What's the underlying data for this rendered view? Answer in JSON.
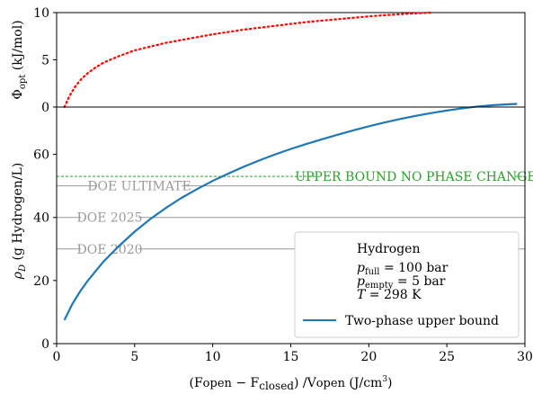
{
  "chart_data": [
    {
      "type": "line",
      "ylabel_main": "Φ",
      "ylabel_sub": "opt",
      "ylabel_unit": " (kJ/mol)",
      "xlim": [
        0,
        30
      ],
      "ylim": [
        0,
        10
      ],
      "yticks": [
        0,
        5,
        10
      ],
      "grid": false,
      "series": [
        {
          "color": "#ff0000",
          "style": "dotted",
          "x": [
            0.5,
            0.8,
            1.2,
            1.6,
            2.0,
            2.5,
            3.0,
            4.0,
            5.0,
            6.0,
            7.0,
            8.0,
            9.0,
            10.0,
            11.0,
            12.0,
            13.0,
            14.0,
            15.0,
            16.0,
            17.0,
            18.0,
            19.0,
            20.0,
            21.0,
            22.0,
            23.0,
            24.0
          ],
          "y": [
            0.0,
            1.1,
            2.2,
            3.0,
            3.6,
            4.2,
            4.7,
            5.4,
            6.0,
            6.4,
            6.8,
            7.1,
            7.4,
            7.7,
            7.95,
            8.2,
            8.4,
            8.6,
            8.8,
            9.0,
            9.15,
            9.3,
            9.45,
            9.6,
            9.72,
            9.83,
            9.92,
            10.0
          ]
        }
      ]
    },
    {
      "type": "line",
      "ylabel_main": "ρ",
      "ylabel_sub": "D",
      "ylabel_unit": " (g Hydrogen/L)",
      "xlabel_pre": "(F",
      "xlabel_open1": "open",
      "xlabel_mid": " − F",
      "xlabel_closed": "closed",
      "xlabel_post": ") /V",
      "xlabel_open2": "open",
      "xlabel_unit": " (J/cm",
      "xlabel_unit_sup": "3",
      "xlabel_close": ")",
      "xlim": [
        0,
        30
      ],
      "ylim": [
        0,
        75
      ],
      "xticks": [
        0,
        5,
        10,
        15,
        20,
        25,
        30
      ],
      "yticks": [
        0,
        20,
        40,
        60
      ],
      "grid": false,
      "series": [
        {
          "name": "Two-phase upper bound",
          "color": "#1f77b4",
          "x": [
            0.5,
            1.0,
            1.5,
            2.0,
            3.0,
            4.0,
            5.0,
            6.0,
            7.0,
            8.0,
            9.0,
            10.0,
            11.0,
            12.0,
            13.0,
            14.0,
            15.0,
            16.0,
            17.0,
            18.0,
            19.0,
            20.0,
            21.0,
            22.0,
            23.0,
            24.0,
            25.0,
            26.0,
            27.0,
            28.0,
            29.0,
            29.5
          ],
          "y": [
            7.5,
            12.5,
            16.5,
            20.0,
            26.0,
            31.0,
            35.5,
            39.5,
            43.0,
            46.2,
            49.0,
            51.6,
            53.9,
            56.1,
            58.1,
            60.0,
            61.7,
            63.3,
            64.8,
            66.2,
            67.6,
            68.9,
            70.1,
            71.2,
            72.2,
            73.1,
            73.9,
            74.6,
            75.2,
            75.6,
            75.9,
            76.0
          ]
        }
      ],
      "reference_lines": [
        {
          "y": 53.0,
          "label": "UPPER BOUND NO PHASE CHANGE",
          "color": "#2ca02c",
          "style": "dashed",
          "label_x": 23.0
        },
        {
          "y": 50.0,
          "label": "DOE ULTIMATE",
          "color": "#999999",
          "style": "solid",
          "label_x": 5.3
        },
        {
          "y": 40.0,
          "label": "DOE 2025",
          "color": "#999999",
          "style": "solid",
          "label_x": 3.4
        },
        {
          "y": 30.0,
          "label": "DOE 2020",
          "color": "#999999",
          "style": "solid",
          "label_x": 3.4
        }
      ],
      "legend": {
        "placement": "lower-right",
        "title": "Hydrogen",
        "lines": [
          {
            "main": "p",
            "sub": "full",
            "rest": " = 100 bar"
          },
          {
            "main": "p",
            "sub": "empty",
            "rest": " = 5 bar"
          },
          {
            "main": "T",
            "sub": "",
            "rest": " = 298 K"
          }
        ],
        "entry": "Two-phase upper bound"
      }
    }
  ]
}
